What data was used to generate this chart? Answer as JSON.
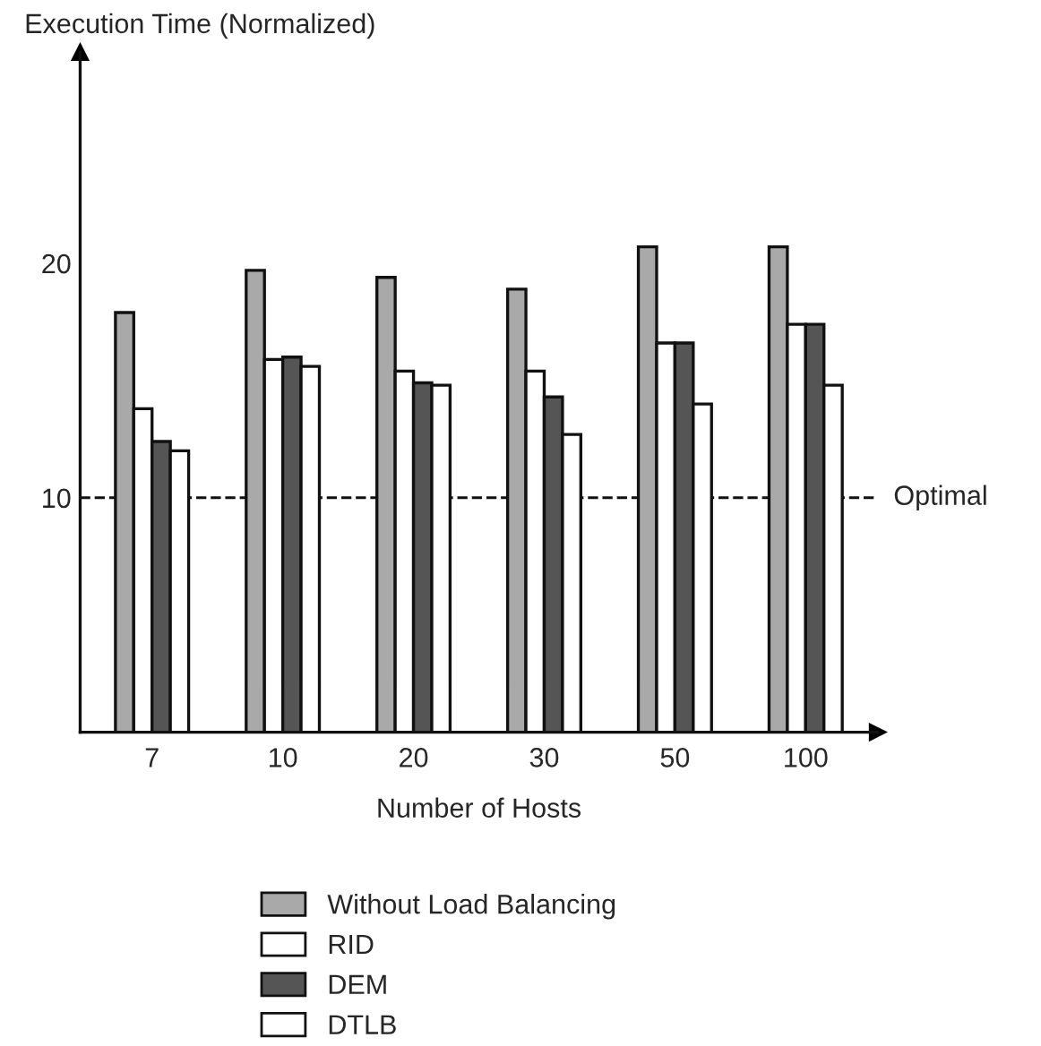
{
  "chart_data": {
    "type": "bar",
    "ylabel": "Execution Time (Normalized)",
    "xlabel": "Number of Hosts",
    "categories": [
      "7",
      "10",
      "20",
      "30",
      "50",
      "100"
    ],
    "series": [
      {
        "name": "Without Load Balancing",
        "color": "#a9a9a9",
        "values": [
          17.9,
          19.7,
          19.4,
          18.9,
          20.7,
          20.7
        ]
      },
      {
        "name": "RID",
        "color": "#ffffff",
        "values": [
          13.8,
          15.9,
          15.4,
          15.4,
          16.6,
          17.4
        ]
      },
      {
        "name": "DEM",
        "color": "#555555",
        "values": [
          12.4,
          16.0,
          14.9,
          14.3,
          16.6,
          17.4
        ]
      },
      {
        "name": "DTLB",
        "color": "#ffffff",
        "values": [
          12.0,
          15.6,
          14.8,
          12.7,
          14.0,
          14.8
        ]
      }
    ],
    "ylim": [
      0,
      29
    ],
    "yticks": [
      10,
      20
    ],
    "ref_lines": [
      {
        "axis": "y",
        "value": 10,
        "label": "Optimal",
        "line_style": "dashed"
      }
    ],
    "grid": false,
    "legend": "bottom"
  }
}
